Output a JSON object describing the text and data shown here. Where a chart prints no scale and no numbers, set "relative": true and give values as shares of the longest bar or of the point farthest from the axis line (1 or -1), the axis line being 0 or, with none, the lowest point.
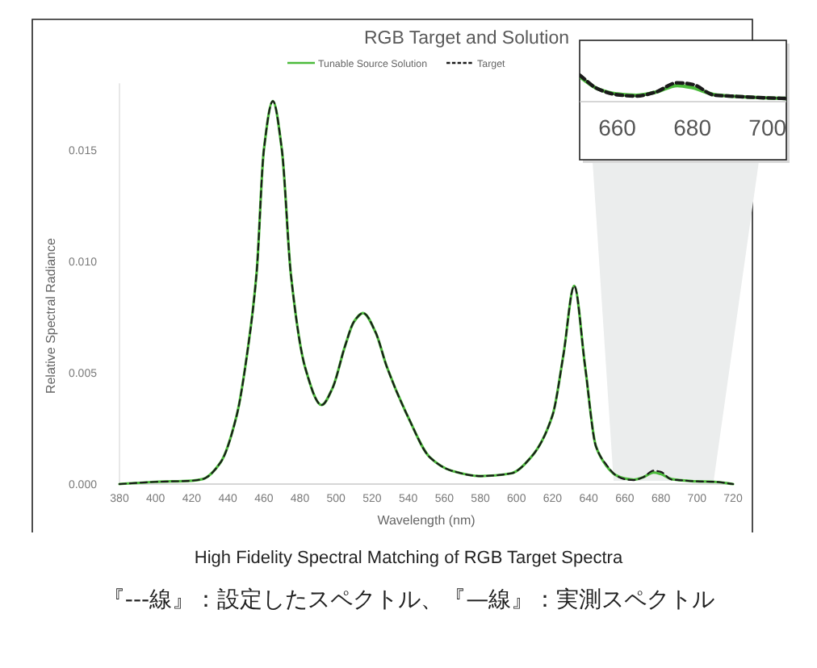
{
  "chart_data": [
    {
      "type": "line",
      "title": "RGB Target and Solution",
      "xlabel": "Wavelength (nm)",
      "ylabel": "Relative Spectral Radiance",
      "x": [
        380,
        400,
        420,
        426,
        436,
        445,
        451,
        456,
        460,
        465,
        470,
        475,
        483,
        492,
        498,
        505,
        510,
        515,
        522,
        528,
        540,
        552,
        564,
        580,
        597,
        608,
        620,
        626,
        632,
        638,
        644,
        650,
        655,
        660,
        665,
        670,
        676,
        680,
        686,
        690,
        700,
        710,
        720
      ],
      "series": [
        {
          "name": "Tunable Source Solution",
          "color": "#4cbb3c",
          "line_style": "solid",
          "values": [
            0,
            0.0001,
            0.00015,
            0.00022,
            0.00097,
            0.0031,
            0.006,
            0.0095,
            0.015,
            0.0172,
            0.015,
            0.0094,
            0.0052,
            0.00355,
            0.0043,
            0.0062,
            0.0073,
            0.00768,
            0.0068,
            0.0053,
            0.003,
            0.0012,
            0.0006,
            0.00036,
            0.00048,
            0.0012,
            0.0031,
            0.0058,
            0.0089,
            0.0053,
            0.0017,
            0.0008,
            0.0004,
            0.00025,
            0.0002,
            0.0003,
            0.00052,
            0.00045,
            0.00022,
            0.00018,
            0.00012,
            0.0001,
            0
          ]
        },
        {
          "name": "Target",
          "color": "#1a1a1a",
          "line_style": "dashed",
          "values": [
            0,
            0.0001,
            0.00015,
            0.00022,
            0.00097,
            0.0031,
            0.006,
            0.0095,
            0.015,
            0.0172,
            0.015,
            0.0094,
            0.0052,
            0.00355,
            0.0043,
            0.0062,
            0.0073,
            0.00768,
            0.0068,
            0.0053,
            0.003,
            0.0012,
            0.0006,
            0.00036,
            0.00048,
            0.0012,
            0.0031,
            0.0058,
            0.0089,
            0.0053,
            0.0017,
            0.00085,
            0.0004,
            0.00022,
            0.00018,
            0.0003,
            0.0006,
            0.00055,
            0.0002,
            0.00018,
            0.00012,
            0.0001,
            0
          ]
        }
      ],
      "xlim": [
        380,
        720
      ],
      "xticks": [
        380,
        400,
        420,
        440,
        460,
        480,
        500,
        520,
        540,
        560,
        580,
        600,
        620,
        640,
        660,
        680,
        700,
        720
      ],
      "ylim": [
        0,
        0.018
      ],
      "yticks": [
        {
          "value": 0,
          "label": "0.000"
        },
        {
          "value": 0.005,
          "label": "0.005"
        },
        {
          "value": 0.01,
          "label": "0.010"
        },
        {
          "value": 0.015,
          "label": "0.015"
        }
      ],
      "legend": "top",
      "grid": false,
      "annotations": [
        "High Fidelity Spectral Matching of RGB Target Spectra",
        "『---線』：設定したスペクトル、『—線』：実測スペクトル"
      ]
    },
    {
      "type": "line",
      "relative": true,
      "x": [
        650,
        655,
        660,
        665,
        670,
        676,
        680,
        686,
        690,
        700,
        705
      ],
      "series": [
        {
          "color": "#4cbb3c",
          "line_style": "solid",
          "values": [
            0.94,
            0.47,
            0.29,
            0.24,
            0.35,
            0.61,
            0.53,
            0.26,
            0.21,
            0.14,
            0.12
          ]
        },
        {
          "color": "#1a1a1a",
          "line_style": "dashed",
          "values": [
            1,
            0.47,
            0.26,
            0.21,
            0.35,
            0.71,
            0.65,
            0.24,
            0.21,
            0.14,
            0.12
          ]
        }
      ],
      "xlim": [
        650,
        705
      ],
      "xticks": [
        660,
        680,
        700
      ],
      "tick_labels": "x",
      "legend": false
    }
  ]
}
